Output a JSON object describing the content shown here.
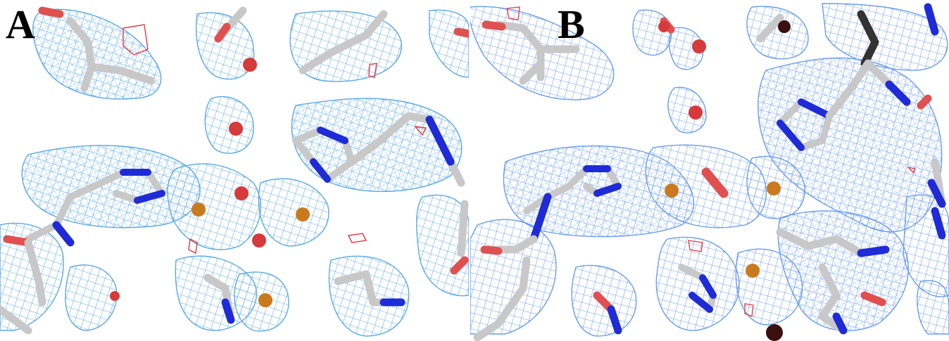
{
  "figure": {
    "panels": [
      {
        "id": "A",
        "label": "A"
      },
      {
        "id": "B",
        "label": "B"
      }
    ]
  },
  "colors": {
    "density_mesh_a": "#5aa9e6",
    "density_mesh_b": "#6a9cf0",
    "difference_mesh": "#e8353f",
    "carbon": "#c8c8c8",
    "nitrogen": "#1f2bd6",
    "oxygen": "#e05050",
    "water": "#d63a3a",
    "metal_ion": "#c97a1e",
    "background": "#ffffff"
  }
}
